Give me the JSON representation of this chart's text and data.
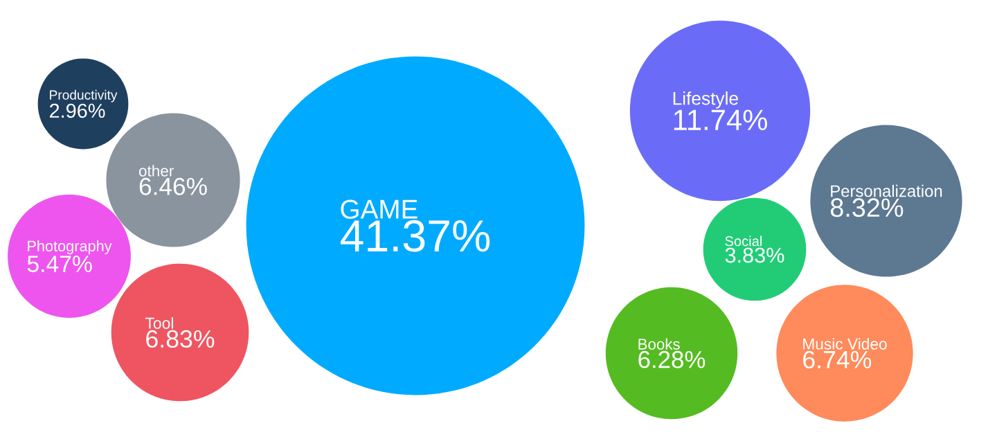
{
  "chart_data": {
    "type": "other",
    "categories": [
      "GAME",
      "Lifestyle",
      "Personalization",
      "Social",
      "Books",
      "Music Video",
      "Tool",
      "other",
      "Photography",
      "Productivity"
    ],
    "values": [
      41.37,
      11.74,
      8.32,
      3.83,
      6.28,
      6.74,
      6.83,
      6.46,
      5.47,
      2.96
    ],
    "value_labels": [
      "41.37%",
      "11.74%",
      "8.32%",
      "3.83%",
      "6.28%",
      "6.74%",
      "6.83%",
      "6.46%",
      "5.47%",
      "2.96%"
    ],
    "colors": [
      "#00aaff",
      "#6a6cf8",
      "#5d7891",
      "#22cc77",
      "#55bb22",
      "#ff8a5b",
      "#ee5560",
      "#8a949e",
      "#ee55ee",
      "#1f3f5f"
    ]
  }
}
